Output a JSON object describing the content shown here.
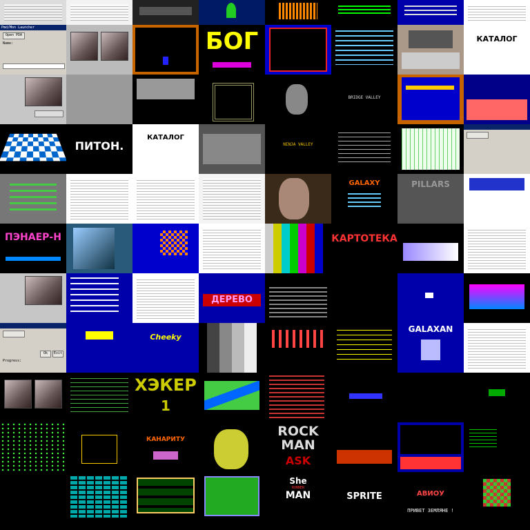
{
  "tiles": {
    "r1_bog": "БОГ",
    "r1_katalog": "КАТАЛОГ",
    "r2_titles": "BRIDGE VALLEY",
    "r3_katalog": "КАТАЛОГ",
    "r3_piton": "ПИТОН.",
    "r3_ninja": "NINJA VALLEY",
    "r4_pillars": "PILLARS",
    "r4_galaxy": "GALAXY",
    "r5_penaer": "ПЭНАЕР-Н",
    "r5_kartoteka": "КАРТОТЕКА",
    "r6_derevo": "ДЕРЕВО",
    "r7_galaxan": "GALAXAN",
    "r7_cheeky": "Cheeky",
    "r8_hacker": "ХЭКЕР",
    "r8_hacker_num": "1",
    "r9_kanarity": "КАНАРИТУ",
    "r9_rock": "ROCK",
    "r9_man": "MAN",
    "r9_ask": "ASK",
    "r10_she": "She",
    "r10_runner": "RUNNER",
    "r10_man": "MAN",
    "r10_sprite": "SPRITE",
    "r10_aviou": "АВИОУ",
    "r10_privet": "ПРИВЕТ ЗЕМЛЯНЕ !",
    "ui_title": "Pmd/Mon Launcher",
    "ui_btn_open": "Open PDA",
    "ui_btn_ok": "Ok",
    "ui_btn_exit": "Exit",
    "ui_label_name": "Name:",
    "ui_label_progress": "Progress:"
  }
}
